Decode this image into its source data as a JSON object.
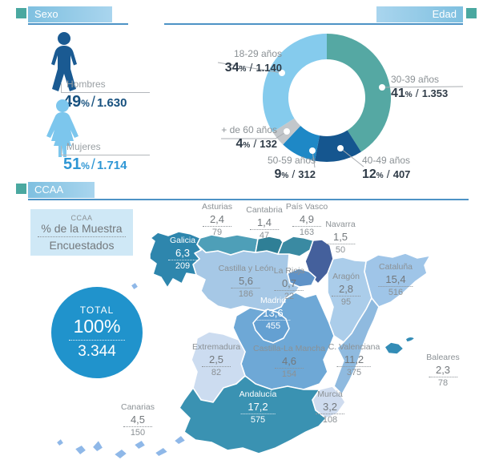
{
  "sexo": {
    "title": "Sexo",
    "items": [
      {
        "label": "Hombres",
        "pct": "49",
        "count": "1.630"
      },
      {
        "label": "Mujeres",
        "pct": "51",
        "count": "1.714"
      }
    ]
  },
  "edad": {
    "title": "Edad",
    "labels": [
      {
        "name": "30-39 años",
        "pct": "41",
        "count": "1.353"
      },
      {
        "name": "40-49 años",
        "pct": "12",
        "count": "407"
      },
      {
        "name": "50-59 años",
        "pct": "9",
        "count": "312"
      },
      {
        "name": "+ de 60 años",
        "pct": "4",
        "count": "132"
      },
      {
        "name": "18-29 años",
        "pct": "34",
        "count": "1.140"
      }
    ]
  },
  "ccaa": {
    "title": "CCAA",
    "legend": {
      "line1": "CCAA",
      "line2": "% de la Muestra",
      "line3": "Encuestados"
    },
    "total": {
      "label": "TOTAL",
      "pct": "100%",
      "count": "3.344"
    },
    "regions": [
      {
        "id": "galicia",
        "name": "Galicia",
        "pct": "6,3",
        "count": "209",
        "color": "#2e86ad"
      },
      {
        "id": "asturias",
        "name": "Asturias",
        "pct": "2,4",
        "count": "79",
        "color": "#4e9fb8"
      },
      {
        "id": "cantabria",
        "name": "Cantabria",
        "pct": "1,4",
        "count": "47",
        "color": "#2f7f96"
      },
      {
        "id": "pais-vasco",
        "name": "País Vasco",
        "pct": "4,9",
        "count": "163",
        "color": "#3a8aa2"
      },
      {
        "id": "navarra",
        "name": "Navarra",
        "pct": "1,5",
        "count": "50",
        "color": "#44609c"
      },
      {
        "id": "la-rioja",
        "name": "La Rioja",
        "pct": "0,7",
        "count": "22",
        "color": "#5f93c8"
      },
      {
        "id": "castilla-y-leon",
        "name": "Castilla y León",
        "pct": "5,6",
        "count": "186",
        "color": "#a6c8e6"
      },
      {
        "id": "aragon",
        "name": "Aragón",
        "pct": "2,8",
        "count": "95",
        "color": "#abcdea"
      },
      {
        "id": "cataluna",
        "name": "Cataluña",
        "pct": "15,4",
        "count": "516",
        "color": "#9fc5e8"
      },
      {
        "id": "madrid",
        "name": "Madrid",
        "pct": "13,6",
        "count": "455",
        "color": "#64a0d2"
      },
      {
        "id": "castilla-la-mancha",
        "name": "Castilla-La Mancha",
        "pct": "4,6",
        "count": "154",
        "color": "#6ea8d6"
      },
      {
        "id": "extremadura",
        "name": "Extremadura",
        "pct": "2,5",
        "count": "82",
        "color": "#ccdcf0"
      },
      {
        "id": "c-valenciana",
        "name": "C. Valenciana",
        "pct": "11,2",
        "count": "375",
        "color": "#8fbadf"
      },
      {
        "id": "murcia",
        "name": "Murcia",
        "pct": "3,2",
        "count": "108",
        "color": "#cfdcef"
      },
      {
        "id": "andalucia",
        "name": "Andalucía",
        "pct": "17,2",
        "count": "575",
        "color": "#3a92b2"
      },
      {
        "id": "baleares",
        "name": "Baleares",
        "pct": "2,3",
        "count": "78",
        "color": "#338cb6"
      },
      {
        "id": "canarias",
        "name": "Canarias",
        "pct": "4,5",
        "count": "150",
        "color": "#8fb8e8"
      }
    ]
  },
  "palette": {
    "teal_square": "#4aa8a0",
    "header_bar": "#8ec7e4",
    "underline": "#4d93c6",
    "male_icon": "#1a5a92",
    "female_icon": "#7cc6ed",
    "hombres_value": "#17517f",
    "mujeres_value": "#2e96d4",
    "total_circle": "#2093cc",
    "legend_bg": "#cfe8f6"
  },
  "chart_data": [
    {
      "type": "pie",
      "subtype": "donut",
      "title": "Edad",
      "start_angle_deg": -90,
      "direction": "clockwise",
      "segments": [
        {
          "label": "30-39 años",
          "percent": 41,
          "count": 1353,
          "color": "#55a8a3"
        },
        {
          "label": "40-49 años",
          "percent": 12,
          "count": 407,
          "color": "#15568f"
        },
        {
          "label": "50-59 años",
          "percent": 9,
          "count": 312,
          "color": "#1e88c6"
        },
        {
          "label": "+ de 60 años",
          "percent": 4,
          "count": 132,
          "color": "#c3c7cb"
        },
        {
          "label": "18-29 años",
          "percent": 34,
          "count": 1140,
          "color": "#85cbed"
        }
      ]
    },
    {
      "type": "heatmap",
      "title": "CCAA — % de la Muestra / Encuestados",
      "total": {
        "percent": 100,
        "count": 3344
      },
      "regions": [
        {
          "name": "Galicia",
          "percent": 6.3,
          "count": 209
        },
        {
          "name": "Asturias",
          "percent": 2.4,
          "count": 79
        },
        {
          "name": "Cantabria",
          "percent": 1.4,
          "count": 47
        },
        {
          "name": "País Vasco",
          "percent": 4.9,
          "count": 163
        },
        {
          "name": "Navarra",
          "percent": 1.5,
          "count": 50
        },
        {
          "name": "La Rioja",
          "percent": 0.7,
          "count": 22
        },
        {
          "name": "Castilla y León",
          "percent": 5.6,
          "count": 186
        },
        {
          "name": "Aragón",
          "percent": 2.8,
          "count": 95
        },
        {
          "name": "Cataluña",
          "percent": 15.4,
          "count": 516
        },
        {
          "name": "Madrid",
          "percent": 13.6,
          "count": 455
        },
        {
          "name": "Castilla-La Mancha",
          "percent": 4.6,
          "count": 154
        },
        {
          "name": "Extremadura",
          "percent": 2.5,
          "count": 82
        },
        {
          "name": "C. Valenciana",
          "percent": 11.2,
          "count": 375
        },
        {
          "name": "Murcia",
          "percent": 3.2,
          "count": 108
        },
        {
          "name": "Andalucía",
          "percent": 17.2,
          "count": 575
        },
        {
          "name": "Baleares",
          "percent": 2.3,
          "count": 78
        },
        {
          "name": "Canarias",
          "percent": 4.5,
          "count": 150
        }
      ]
    }
  ]
}
